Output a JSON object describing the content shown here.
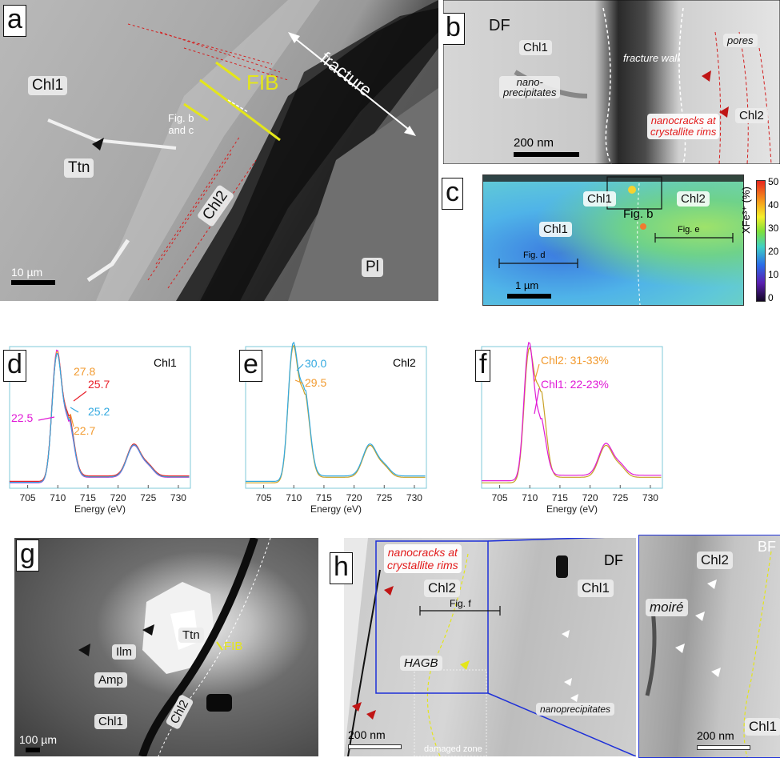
{
  "panel_a": {
    "letter": "a",
    "labels": {
      "chl1": "Chl1",
      "ttn": "Ttn",
      "chl2": "Chl2",
      "pl": "Pl",
      "fracture": "fracture",
      "fib": "FIB",
      "figref": "Fig. b\nand c"
    },
    "scale": "10 µm"
  },
  "panel_b": {
    "letter": "b",
    "labels": {
      "df": "DF",
      "chl1": "Chl1",
      "nano": "nano-\nprecipitates",
      "wall": "fracture wall",
      "pores": "pores",
      "nanocracks": "nanocracks at\ncrystallite rims",
      "chl2": "Chl2"
    },
    "scale": "200 nm"
  },
  "panel_c": {
    "letter": "c",
    "labels": {
      "chl1_top": "Chl1",
      "chl2": "Chl2",
      "figb": "Fig. b",
      "chl1": "Chl1",
      "fige": "Fig. e",
      "figd": "Fig. d"
    },
    "scale": "1 µm",
    "colorbar": {
      "label": "XFe³⁺ (%)",
      "ticks": [
        "50",
        "40",
        "30",
        "20",
        "10",
        "0"
      ]
    }
  },
  "panel_d": {
    "letter": "d",
    "title": "Chl1",
    "xlabel": "Energy (eV)",
    "xticks": [
      "705",
      "710",
      "715",
      "720",
      "725",
      "730"
    ],
    "annotations": [
      {
        "text": "27.8",
        "color": "#f29b30"
      },
      {
        "text": "25.7",
        "color": "#e8202a"
      },
      {
        "text": "22.5",
        "color": "#e01ad6"
      },
      {
        "text": "25.2",
        "color": "#33a9e0"
      },
      {
        "text": "22.7",
        "color": "#f29b30"
      }
    ]
  },
  "panel_e": {
    "letter": "e",
    "title": "Chl2",
    "xlabel": "Energy (eV)",
    "xticks": [
      "705",
      "710",
      "715",
      "720",
      "725",
      "730"
    ],
    "annotations": [
      {
        "text": "30.0",
        "color": "#33a9e0"
      },
      {
        "text": "29.5",
        "color": "#f29b30"
      }
    ]
  },
  "panel_f": {
    "letter": "f",
    "xlabel": "Energy (eV)",
    "xticks": [
      "705",
      "710",
      "715",
      "720",
      "725",
      "730"
    ],
    "annotations": [
      {
        "text": "Chl2: 31-33%",
        "color": "#f29b30"
      },
      {
        "text": "Chl1: 22-23%",
        "color": "#e01ad6"
      }
    ]
  },
  "panel_g": {
    "letter": "g",
    "labels": {
      "ttn": "Ttn",
      "fib": "FIB",
      "ilm": "Ilm",
      "amp": "Amp",
      "chl1": "Chl1",
      "chl2": "Chl2"
    },
    "scale": "100 µm"
  },
  "panel_h": {
    "letter": "h",
    "labels": {
      "nanocracks": "nanocracks at\ncrystallite rims",
      "df": "DF",
      "chl2": "Chl2",
      "chl1": "Chl1",
      "figf": "Fig. f",
      "hagb": "HAGB",
      "nanoprecip": "nanoprecipitates",
      "damaged": "damaged zone",
      "bf": "BF",
      "chl2_r": "Chl2",
      "moire": "moiré",
      "chl1_r": "Chl1"
    },
    "scale_left": "200 nm",
    "scale_right": "200 nm"
  },
  "colors": {
    "magenta": "#e01ad6",
    "orange": "#f29b30",
    "red": "#e8202a",
    "blue": "#33a9e0",
    "gold": "#c9a227",
    "yellow": "#e4e61a",
    "redtext": "#e21b1b"
  }
}
